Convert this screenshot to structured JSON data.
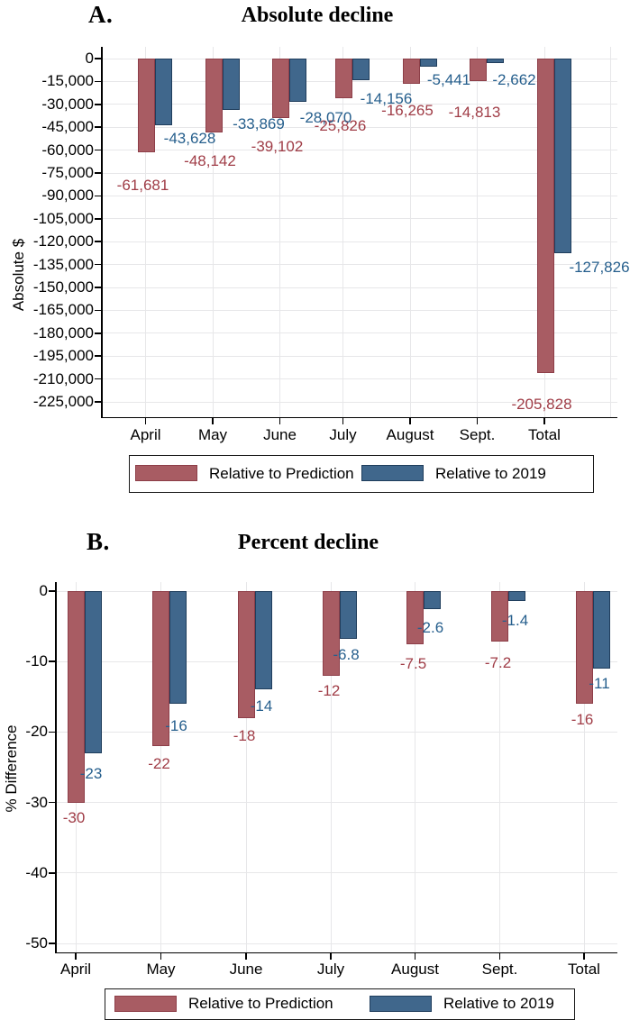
{
  "legend": {
    "items": [
      {
        "label": "Relative to Prediction",
        "color": "#a85c63",
        "border": "#8d3e48"
      },
      {
        "label": "Relative to 2019",
        "color": "#40678c",
        "border": "#1f3d5c"
      }
    ]
  },
  "chart_data": [
    {
      "type": "bar",
      "panel_label": "A.",
      "title": "Absolute decline",
      "xlabel": "",
      "ylabel": "Absolute $",
      "categories": [
        "April",
        "May",
        "June",
        "July",
        "August",
        "Sept.",
        "Total"
      ],
      "series": [
        {
          "name": "Relative to Prediction",
          "color": "#a85c63",
          "border_color": "#8d3e48",
          "label_color": "#a03d47",
          "values": [
            -61681,
            -48142,
            -39102,
            -25826,
            -16265,
            -14813,
            -205828
          ],
          "value_labels": [
            "-61,681",
            "-48,142",
            "-39,102",
            "-25,826",
            "-16,265",
            "-14,813",
            "-205,828"
          ]
        },
        {
          "name": "Relative to 2019",
          "color": "#40678c",
          "border_color": "#1f3d5c",
          "label_color": "#265f8d",
          "values": [
            -43628,
            -33869,
            -28070,
            -14156,
            -5441,
            -2662,
            -127826
          ],
          "value_labels": [
            "-43,628",
            "-33,869",
            "-28,070",
            "-14,156",
            "-5,441",
            "-2,662",
            "-127,826"
          ]
        }
      ],
      "yticks": {
        "values": [
          0,
          -15000,
          -30000,
          -45000,
          -60000,
          -75000,
          -90000,
          -105000,
          -120000,
          -135000,
          -150000,
          -165000,
          -180000,
          -195000,
          -210000,
          -225000
        ],
        "labels": [
          "0",
          "-15,000",
          "-30,000",
          "-45,000",
          "-60,000",
          "-75,000",
          "-90,000",
          "-105,000",
          "-120,000",
          "-135,000",
          "-150,000",
          "-165,000",
          "-180,000",
          "-195,000",
          "-210,000",
          "-225,000"
        ]
      },
      "ylim": [
        -225000,
        0
      ],
      "grid": true,
      "legend_position": "bottom"
    },
    {
      "type": "bar",
      "panel_label": "B.",
      "title": "Percent decline",
      "xlabel": "",
      "ylabel": "% Difference",
      "categories": [
        "April",
        "May",
        "June",
        "July",
        "August",
        "Sept.",
        "Total"
      ],
      "series": [
        {
          "name": "Relative to Prediction",
          "color": "#a85c63",
          "border_color": "#8d3e48",
          "label_color": "#a03d47",
          "values": [
            -30,
            -22,
            -18,
            -12,
            -7.5,
            -7.2,
            -16
          ],
          "value_labels": [
            "-30",
            "-22",
            "-18",
            "-12",
            "-7.5",
            "-7.2",
            "-16"
          ]
        },
        {
          "name": "Relative to 2019",
          "color": "#40678c",
          "border_color": "#1f3d5c",
          "label_color": "#265f8d",
          "values": [
            -23,
            -16,
            -14,
            -6.8,
            -2.6,
            -1.4,
            -11
          ],
          "value_labels": [
            "-23",
            "-16",
            "-14",
            "-6.8",
            "-2.6",
            "-1.4",
            "-11"
          ]
        }
      ],
      "yticks": {
        "values": [
          0,
          -10,
          -20,
          -30,
          -40,
          -50
        ],
        "labels": [
          "0",
          "-10",
          "-20",
          "-30",
          "-40",
          "-50"
        ]
      },
      "ylim": [
        -50,
        0
      ],
      "grid": true,
      "legend_position": "bottom"
    }
  ]
}
